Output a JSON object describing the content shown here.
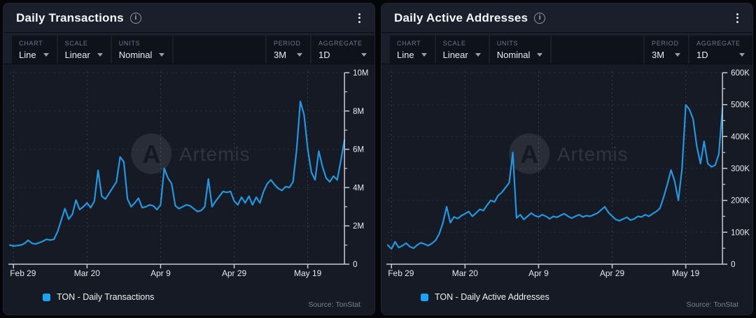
{
  "watermark": {
    "glyph": "A",
    "text": "Artemis"
  },
  "icons": {
    "info_glyph": "i"
  },
  "panels": [
    {
      "title": "Daily Transactions",
      "toolbar": {
        "chart": {
          "label": "CHART",
          "value": "Line"
        },
        "scale": {
          "label": "SCALE",
          "value": "Linear"
        },
        "units": {
          "label": "UNITS",
          "value": "Nominal"
        },
        "period": {
          "label": "PERIOD",
          "value": "3M"
        },
        "aggregate": {
          "label": "AGGREGATE",
          "value": "1D"
        }
      },
      "legend": "TON - Daily Transactions",
      "source": "Source: TonStat"
    },
    {
      "title": "Daily Active Addresses",
      "toolbar": {
        "chart": {
          "label": "CHART",
          "value": "Line"
        },
        "scale": {
          "label": "SCALE",
          "value": "Linear"
        },
        "units": {
          "label": "UNITS",
          "value": "Nominal"
        },
        "period": {
          "label": "PERIOD",
          "value": "3M"
        },
        "aggregate": {
          "label": "AGGREGATE",
          "value": "1D"
        }
      },
      "legend": "TON - Daily Active Addresses",
      "source": "Source: TonStat"
    }
  ],
  "chart_data": [
    {
      "type": "line",
      "title": "Daily Transactions",
      "series_name": "TON - Daily Transactions",
      "unit": "millions of transactions per day",
      "line_color": "#2596E0",
      "legend_color": "#1AA3F5",
      "grid": true,
      "legend_position": "bottom-left",
      "x_axis": {
        "tick_labels": [
          "Feb 29",
          "Mar 20",
          "Apr 9",
          "Apr 29",
          "May 19"
        ],
        "tick_indices": [
          1,
          21,
          41,
          61,
          81
        ]
      },
      "y_axis": {
        "max": 10,
        "majors": [
          0,
          2,
          4,
          6,
          8,
          10
        ],
        "labels": [
          "0",
          "2M",
          "4M",
          "6M",
          "8M",
          "10M"
        ],
        "minor_step": 1
      },
      "values": [
        1.0,
        0.95,
        0.97,
        1.0,
        1.08,
        1.25,
        1.1,
        1.05,
        1.12,
        1.2,
        1.3,
        1.26,
        1.3,
        1.7,
        2.3,
        2.9,
        2.35,
        2.6,
        3.35,
        2.85,
        3.0,
        3.2,
        2.95,
        3.3,
        4.9,
        3.55,
        3.4,
        3.7,
        4.0,
        4.3,
        5.6,
        5.35,
        3.4,
        3.0,
        3.2,
        3.45,
        2.95,
        3.0,
        3.1,
        3.05,
        2.85,
        3.1,
        5.0,
        4.5,
        4.2,
        3.05,
        2.9,
        3.0,
        3.1,
        3.05,
        2.9,
        2.75,
        2.8,
        3.0,
        4.45,
        3.0,
        3.3,
        3.55,
        3.8,
        3.75,
        3.8,
        3.3,
        3.1,
        3.5,
        3.2,
        3.55,
        3.1,
        3.5,
        3.2,
        3.8,
        4.2,
        4.4,
        4.15,
        3.95,
        3.85,
        4.05,
        4.0,
        4.3,
        6.0,
        8.5,
        7.8,
        6.0,
        4.8,
        4.4,
        5.9,
        5.1,
        4.5,
        4.3,
        4.6,
        4.4,
        5.4,
        6.5
      ]
    },
    {
      "type": "line",
      "title": "Daily Active Addresses",
      "series_name": "TON - Daily Active Addresses",
      "unit": "thousands of active addresses per day",
      "line_color": "#2596E0",
      "legend_color": "#1AA3F5",
      "grid": true,
      "legend_position": "bottom-left",
      "x_axis": {
        "tick_labels": [
          "Feb 29",
          "Mar 20",
          "Apr 9",
          "Apr 29",
          "May 19"
        ],
        "tick_indices": [
          1,
          21,
          41,
          61,
          81
        ]
      },
      "y_axis": {
        "max": 600,
        "majors": [
          0,
          100,
          200,
          300,
          400,
          500,
          600
        ],
        "labels": [
          "0",
          "100K",
          "200K",
          "300K",
          "400K",
          "500K",
          "600K"
        ],
        "minor_step": 50
      },
      "values": [
        60,
        48,
        70,
        52,
        58,
        66,
        55,
        50,
        60,
        67,
        63,
        58,
        65,
        75,
        95,
        130,
        180,
        130,
        148,
        143,
        152,
        158,
        165,
        150,
        160,
        172,
        168,
        185,
        200,
        195,
        215,
        225,
        240,
        255,
        350,
        145,
        155,
        140,
        150,
        160,
        152,
        148,
        155,
        150,
        142,
        150,
        147,
        153,
        158,
        150,
        144,
        150,
        155,
        148,
        152,
        150,
        155,
        160,
        170,
        180,
        162,
        150,
        140,
        136,
        142,
        147,
        138,
        142,
        150,
        148,
        155,
        150,
        158,
        165,
        175,
        210,
        250,
        295,
        260,
        200,
        300,
        499,
        485,
        455,
        370,
        315,
        385,
        315,
        305,
        310,
        345,
        490
      ]
    }
  ]
}
